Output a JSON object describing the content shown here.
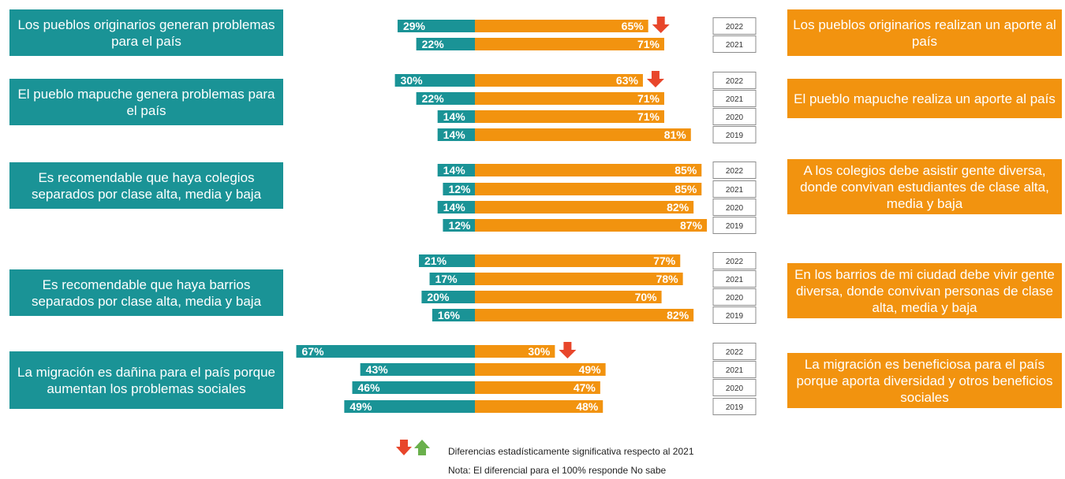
{
  "colors": {
    "teal": "#1a9396",
    "orange": "#f2930f",
    "arrow_down": "#e8462b",
    "arrow_up": "#6ab04c"
  },
  "chart_data": {
    "type": "bar",
    "layout": "diverging-horizontal",
    "xlim": [
      0,
      100
    ],
    "groups": [
      {
        "left_label": "Los pueblos originarios generan problemas para el país",
        "right_label": "Los pueblos originarios realizan un aporte al país",
        "rows": [
          {
            "year": "2022",
            "left": 29,
            "right": 65,
            "arrow": "down"
          },
          {
            "year": "2021",
            "left": 22,
            "right": 71,
            "arrow": null
          }
        ]
      },
      {
        "left_label": "El pueblo mapuche genera problemas para el país",
        "right_label": "El pueblo mapuche realiza un aporte al país",
        "rows": [
          {
            "year": "2022",
            "left": 30,
            "right": 63,
            "arrow": "down"
          },
          {
            "year": "2021",
            "left": 22,
            "right": 71,
            "arrow": null
          },
          {
            "year": "2020",
            "left": 14,
            "right": 71,
            "arrow": null
          },
          {
            "year": "2019",
            "left": 14,
            "right": 81,
            "arrow": null
          }
        ]
      },
      {
        "left_label": "Es recomendable que haya colegios separados por clase alta, media y baja",
        "right_label": "A los colegios debe asistir gente diversa, donde convivan estudiantes de clase alta, media y baja",
        "rows": [
          {
            "year": "2022",
            "left": 14,
            "right": 85,
            "arrow": null
          },
          {
            "year": "2021",
            "left": 12,
            "right": 85,
            "arrow": null
          },
          {
            "year": "2020",
            "left": 14,
            "right": 82,
            "arrow": null
          },
          {
            "year": "2019",
            "left": 12,
            "right": 87,
            "arrow": null
          }
        ]
      },
      {
        "left_label": "Es recomendable que haya barrios separados por clase alta, media y baja",
        "right_label": "En los barrios de mi ciudad debe vivir gente diversa, donde convivan personas de clase alta, media y baja",
        "rows": [
          {
            "year": "2022",
            "left": 21,
            "right": 77,
            "arrow": null
          },
          {
            "year": "2021",
            "left": 17,
            "right": 78,
            "arrow": null
          },
          {
            "year": "2020",
            "left": 20,
            "right": 70,
            "arrow": null
          },
          {
            "year": "2019",
            "left": 16,
            "right": 82,
            "arrow": null
          }
        ]
      },
      {
        "left_label": "La migración es dañina para el país porque aumentan los problemas sociales",
        "right_label": "La migración es beneficiosa para el país porque aporta diversidad y otros beneficios sociales",
        "rows": [
          {
            "year": "2022",
            "left": 67,
            "right": 30,
            "arrow": "down"
          },
          {
            "year": "2021",
            "left": 43,
            "right": 49,
            "arrow": null
          },
          {
            "year": "2020",
            "left": 46,
            "right": 47,
            "arrow": null
          },
          {
            "year": "2019",
            "left": 49,
            "right": 48,
            "arrow": null
          }
        ]
      }
    ]
  },
  "legend": {
    "significance": "Diferencias estadísticamente significativa respecto al 2021",
    "note": "Nota: El diferencial para el 100% responde No sabe"
  }
}
